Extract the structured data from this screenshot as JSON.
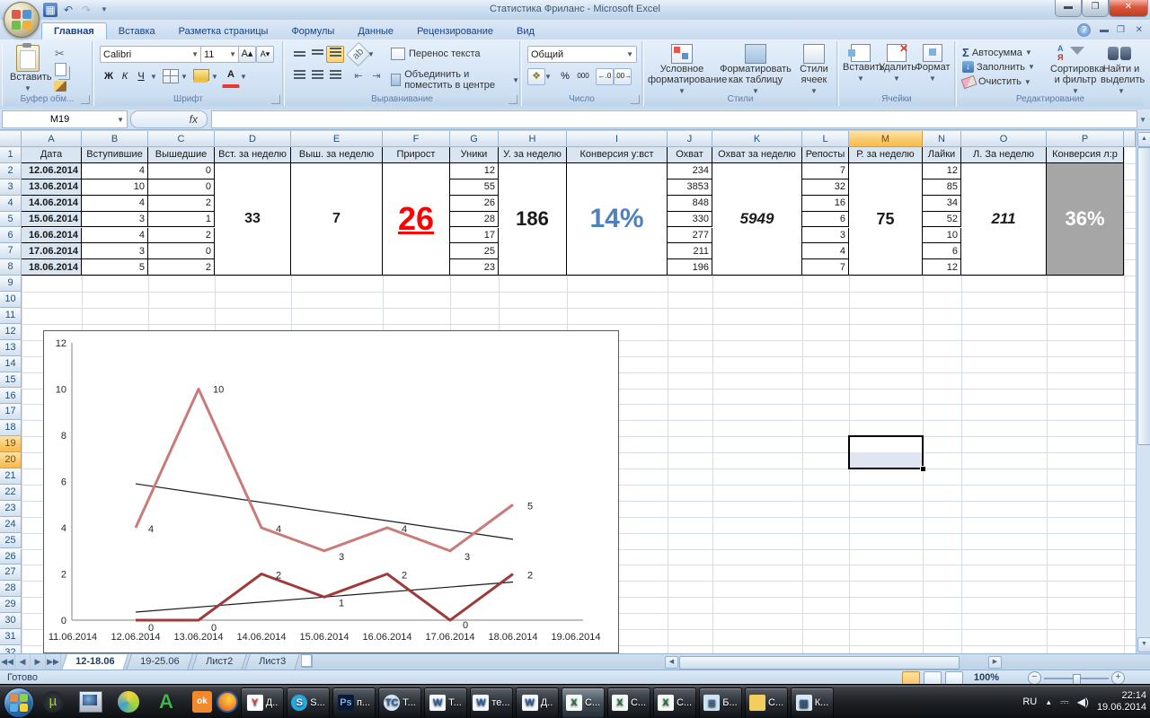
{
  "window": {
    "title": "Статистика Фриланс - Microsoft Excel"
  },
  "ribbon": {
    "tabs": [
      {
        "label": "Главная",
        "active": true
      },
      {
        "label": "Вставка",
        "active": false
      },
      {
        "label": "Разметка страницы",
        "active": false
      },
      {
        "label": "Формулы",
        "active": false
      },
      {
        "label": "Данные",
        "active": false
      },
      {
        "label": "Рецензирование",
        "active": false
      },
      {
        "label": "Вид",
        "active": false
      }
    ],
    "clipboard": {
      "label": "Буфер обм...",
      "paste": "Вставить"
    },
    "font": {
      "label": "Шрифт",
      "name": "Calibri",
      "size": "11",
      "bold": "Ж",
      "italic": "К",
      "underline": "Ч"
    },
    "alignment": {
      "label": "Выравнивание",
      "wrap": "Перенос текста",
      "merge": "Объединить и поместить в центре"
    },
    "number": {
      "label": "Число",
      "format": "Общий",
      "percent": "%",
      "thousands": "000"
    },
    "styles": {
      "label": "Стили",
      "conditional": "Условное форматирование",
      "as_table": "Форматировать как таблицу",
      "cell_styles": "Стили ячеек"
    },
    "cells": {
      "label": "Ячейки",
      "insert": "Вставить",
      "remove": "Удалить",
      "format": "Формат"
    },
    "editing": {
      "label": "Редактирование",
      "autosum": "Автосумма",
      "fill": "Заполнить",
      "clear": "Очистить",
      "sort": "Сортировка и фильтр",
      "find": "Найти и выделить"
    }
  },
  "formula_bar": {
    "name_box": "M19",
    "fx": "fx"
  },
  "grid": {
    "columns": [
      "A",
      "B",
      "C",
      "D",
      "E",
      "F",
      "G",
      "H",
      "I",
      "J",
      "K",
      "L",
      "M",
      "N",
      "O",
      "P"
    ],
    "selected_column": "M",
    "selected_rows": [
      19,
      20
    ],
    "row_count": 32,
    "table": {
      "columns": [
        {
          "col": "A",
          "header": "Дата",
          "type": "dates",
          "values": [
            "12.06.2014",
            "13.06.2014",
            "14.06.2014",
            "15.06.2014",
            "16.06.2014",
            "17.06.2014",
            "18.06.2014"
          ]
        },
        {
          "col": "B",
          "header": "Вступившие",
          "values": [
            "4",
            "10",
            "4",
            "3",
            "4",
            "3",
            "5"
          ]
        },
        {
          "col": "C",
          "header": "Вышедшие",
          "values": [
            "0",
            "0",
            "2",
            "1",
            "2",
            "0",
            "2"
          ]
        },
        {
          "col": "D",
          "header": "Вст. за неделю",
          "merged": "33",
          "style": "sum"
        },
        {
          "col": "E",
          "header": "Выш. за неделю",
          "merged": "7",
          "style": "sum"
        },
        {
          "col": "F",
          "header": "Прирост",
          "merged": "26",
          "style": "big-red"
        },
        {
          "col": "G",
          "header": "Уники",
          "values": [
            "12",
            "55",
            "26",
            "28",
            "17",
            "25",
            "23"
          ]
        },
        {
          "col": "H",
          "header": "У. за неделю",
          "merged": "186",
          "style": "big-black"
        },
        {
          "col": "I",
          "header": "Конверсия у:вст",
          "merged": "14%",
          "style": "big-blue"
        },
        {
          "col": "J",
          "header": "Охват",
          "values": [
            "234",
            "3853",
            "848",
            "330",
            "277",
            "211",
            "196"
          ]
        },
        {
          "col": "K",
          "header": "Охват за неделю",
          "merged": "5949",
          "style": "bold-italic"
        },
        {
          "col": "L",
          "header": "Репосты",
          "values": [
            "7",
            "32",
            "16",
            "6",
            "3",
            "4",
            "7"
          ]
        },
        {
          "col": "M",
          "header": "Р. за неделю",
          "merged": "75",
          "style": "sum-big"
        },
        {
          "col": "N",
          "header": "Лайки",
          "values": [
            "12",
            "85",
            "34",
            "52",
            "10",
            "6",
            "12"
          ]
        },
        {
          "col": "O",
          "header": "Л. За неделю",
          "merged": "211",
          "style": "bold-italic"
        },
        {
          "col": "P",
          "header": "Конверсия л:р",
          "merged": "36%",
          "style": "white-gray"
        }
      ]
    }
  },
  "chart_data": {
    "type": "line",
    "x_axis_labels": [
      "11.06.2014",
      "12.06.2014",
      "13.06.2014",
      "14.06.2014",
      "15.06.2014",
      "16.06.2014",
      "17.06.2014",
      "18.06.2014",
      "19.06.2014"
    ],
    "x": [
      "12.06.2014",
      "13.06.2014",
      "14.06.2014",
      "15.06.2014",
      "16.06.2014",
      "17.06.2014",
      "18.06.2014"
    ],
    "series": [
      {
        "name": "Вступившие",
        "color": "#c87b79",
        "values": [
          4,
          10,
          4,
          3,
          4,
          3,
          5
        ]
      },
      {
        "name": "Вышедшие",
        "color": "#9e3b39",
        "values": [
          0,
          0,
          2,
          1,
          2,
          0,
          2
        ]
      }
    ],
    "trendlines": [
      {
        "series": "Вступившие",
        "start": 5.9,
        "end": 3.5,
        "color": "#1a1a1a"
      },
      {
        "series": "Вышедшие",
        "start": 0.35,
        "end": 1.65,
        "color": "#1a1a1a"
      }
    ],
    "label_offsets": [
      [
        [
          14,
          5
        ],
        [
          16,
          4
        ],
        [
          16,
          5
        ],
        [
          16,
          10
        ],
        [
          16,
          5
        ],
        [
          16,
          10
        ],
        [
          16,
          5
        ]
      ],
      [
        [
          14,
          12
        ],
        [
          14,
          12
        ],
        [
          16,
          5
        ],
        [
          16,
          10
        ],
        [
          16,
          5
        ],
        [
          14,
          9
        ],
        [
          16,
          5
        ]
      ]
    ],
    "ylim": [
      0,
      12
    ],
    "yticks": [
      0,
      2,
      4,
      6,
      8,
      10,
      12
    ],
    "grid": false,
    "legend": "none",
    "data_labels": true
  },
  "sheet_tabs": [
    {
      "label": "12-18.06",
      "active": true
    },
    {
      "label": "19-25.06",
      "active": false
    },
    {
      "label": "Лист2",
      "active": false
    },
    {
      "label": "Лист3",
      "active": false
    }
  ],
  "status_bar": {
    "ready": "Готово",
    "zoom": "100%"
  },
  "taskbar": {
    "buttons": [
      {
        "app": "yandex",
        "label": "Д.."
      },
      {
        "app": "skype",
        "label": "S..."
      },
      {
        "app": "photoshop",
        "label": "п..."
      },
      {
        "app": "tc",
        "label": "Т..."
      },
      {
        "app": "word",
        "label": "Т..."
      },
      {
        "app": "word",
        "label": "те..."
      },
      {
        "app": "word",
        "label": "Д.."
      },
      {
        "app": "excel",
        "label": "С...",
        "active": true
      },
      {
        "app": "excel",
        "label": "С..."
      },
      {
        "app": "excel",
        "label": "С..."
      },
      {
        "app": "notepad",
        "label": "Б..."
      },
      {
        "app": "folder",
        "label": "С..."
      },
      {
        "app": "calc",
        "label": "К..."
      }
    ],
    "tray": {
      "lang": "RU",
      "time": "22:14",
      "date": "19.06.2014"
    }
  }
}
